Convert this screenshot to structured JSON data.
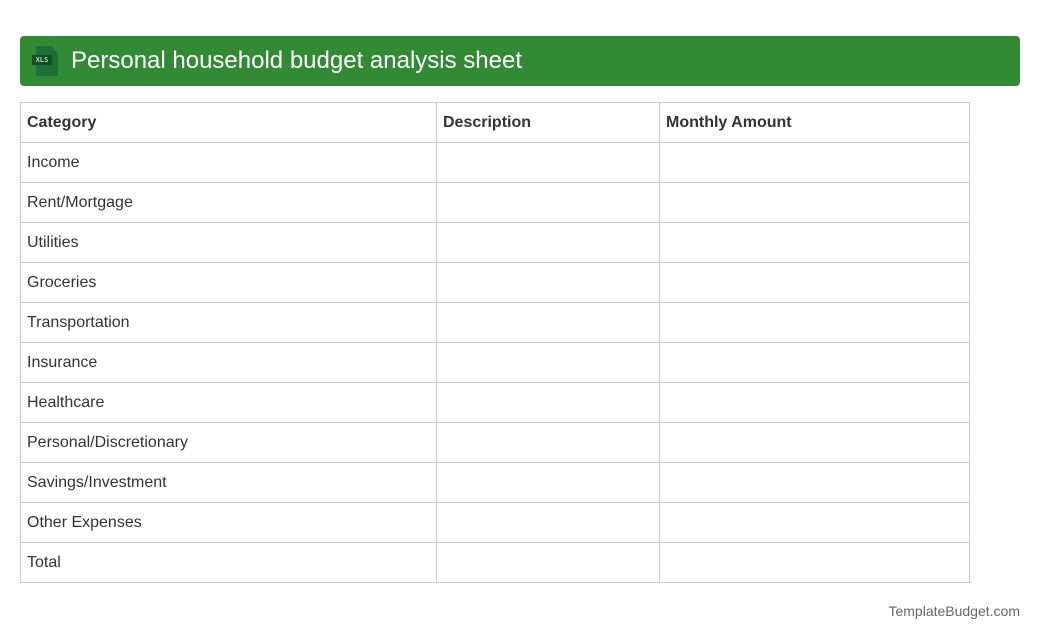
{
  "header": {
    "title": "Personal household budget analysis sheet",
    "icon": "xls-file-icon",
    "icon_label": "XLS",
    "color": "#338a35"
  },
  "table": {
    "columns": [
      "Category",
      "Description",
      "Monthly Amount"
    ],
    "rows": [
      "Income",
      "Rent/Mortgage",
      "Utilities",
      "Groceries",
      "Transportation",
      "Insurance",
      "Healthcare",
      "Personal/Discretionary",
      "Savings/Investment",
      "Other Expenses",
      "Total"
    ]
  },
  "footer": {
    "brand": "TemplateBudget.com"
  }
}
